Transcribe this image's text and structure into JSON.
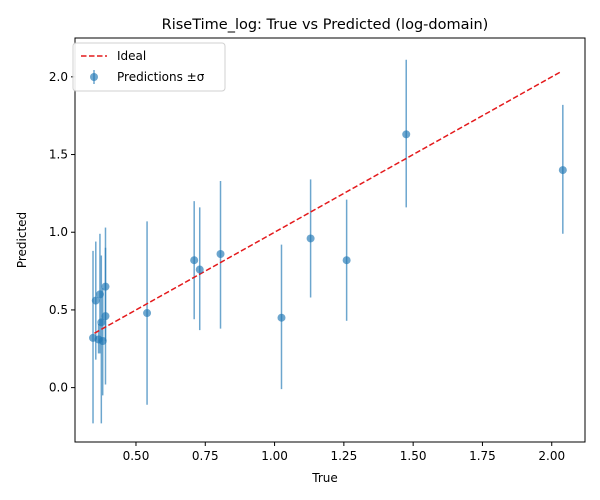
{
  "chart_data": {
    "type": "scatter",
    "title": "RiseTime_log: True vs Predicted (log-domain)",
    "xlabel": "True",
    "ylabel": "Predicted",
    "xlim": [
      0.28,
      2.12
    ],
    "ylim": [
      -0.35,
      2.25
    ],
    "x_ticks": [
      0.5,
      0.75,
      1.0,
      1.25,
      1.5,
      1.75,
      2.0
    ],
    "x_tick_labels": [
      "0.50",
      "0.75",
      "1.00",
      "1.25",
      "1.50",
      "1.75",
      "2.00"
    ],
    "y_ticks": [
      0.0,
      0.5,
      1.0,
      1.5,
      2.0
    ],
    "y_tick_labels": [
      "0.0",
      "0.5",
      "1.0",
      "1.5",
      "2.0"
    ],
    "grid": false,
    "legend_position": "top-left",
    "ideal_line": {
      "name": "Ideal",
      "x": [
        0.35,
        2.03
      ],
      "y": [
        0.35,
        2.03
      ],
      "color": "#e41a1c",
      "style": "dashed"
    },
    "series": [
      {
        "name": "Predictions ±σ",
        "color": "#1f77b4",
        "points": [
          {
            "x": 0.345,
            "y": 0.32,
            "lo": -0.23,
            "hi": 0.88
          },
          {
            "x": 0.355,
            "y": 0.56,
            "lo": 0.18,
            "hi": 0.94
          },
          {
            "x": 0.365,
            "y": 0.31,
            "lo": 0.22,
            "hi": 0.41
          },
          {
            "x": 0.37,
            "y": 0.6,
            "lo": 0.22,
            "hi": 0.99
          },
          {
            "x": 0.375,
            "y": 0.42,
            "lo": -0.23,
            "hi": 0.85
          },
          {
            "x": 0.38,
            "y": 0.3,
            "lo": -0.05,
            "hi": 0.64
          },
          {
            "x": 0.39,
            "y": 0.65,
            "lo": 0.3,
            "hi": 1.03
          },
          {
            "x": 0.39,
            "y": 0.46,
            "lo": 0.02,
            "hi": 0.9
          },
          {
            "x": 0.54,
            "y": 0.48,
            "lo": -0.11,
            "hi": 1.07
          },
          {
            "x": 0.71,
            "y": 0.82,
            "lo": 0.44,
            "hi": 1.2
          },
          {
            "x": 0.73,
            "y": 0.76,
            "lo": 0.37,
            "hi": 1.16
          },
          {
            "x": 0.805,
            "y": 0.86,
            "lo": 0.38,
            "hi": 1.33
          },
          {
            "x": 1.025,
            "y": 0.45,
            "lo": -0.01,
            "hi": 0.92
          },
          {
            "x": 1.13,
            "y": 0.96,
            "lo": 0.58,
            "hi": 1.34
          },
          {
            "x": 1.26,
            "y": 0.82,
            "lo": 0.43,
            "hi": 1.21
          },
          {
            "x": 1.475,
            "y": 1.63,
            "lo": 1.16,
            "hi": 2.11
          },
          {
            "x": 2.04,
            "y": 1.4,
            "lo": 0.99,
            "hi": 1.82
          }
        ]
      }
    ]
  }
}
